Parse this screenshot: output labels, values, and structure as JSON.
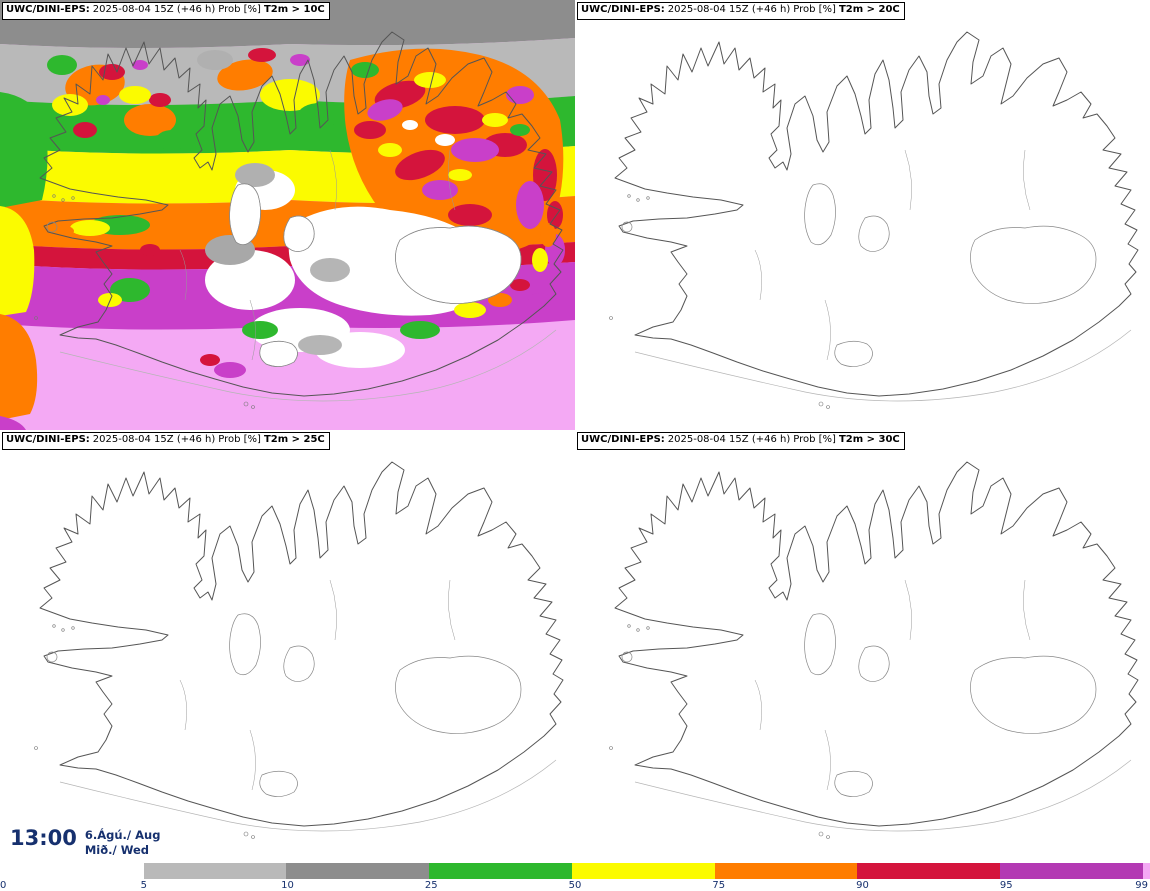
{
  "panels": [
    {
      "model": "UWC/DINI-EPS:",
      "run": "2025-08-04 15Z (+46 h)",
      "prob": "Prob [%]",
      "threshold": "T2m > 10C"
    },
    {
      "model": "UWC/DINI-EPS:",
      "run": "2025-08-04 15Z (+46 h)",
      "prob": "Prob [%]",
      "threshold": "T2m > 20C"
    },
    {
      "model": "UWC/DINI-EPS:",
      "run": "2025-08-04 15Z (+46 h)",
      "prob": "Prob [%]",
      "threshold": "T2m > 25C"
    },
    {
      "model": "UWC/DINI-EPS:",
      "run": "2025-08-04 15Z (+46 h)",
      "prob": "Prob [%]",
      "threshold": "T2m > 30C"
    }
  ],
  "valid_time": {
    "time": "13:00",
    "date": "6.Ágú./ Aug",
    "day": "Mið./ Wed"
  },
  "legend": {
    "ticks": [
      "0",
      "5",
      "10",
      "25",
      "50",
      "75",
      "90",
      "95",
      "99"
    ],
    "segments": [
      {
        "from": 5,
        "to": 10,
        "color": "#b9b9b9"
      },
      {
        "from": 10,
        "to": 25,
        "color": "#8d8d8d"
      },
      {
        "from": 25,
        "to": 50,
        "color": "#2eb82e"
      },
      {
        "from": 50,
        "to": 75,
        "color": "#fbfb00"
      },
      {
        "from": 75,
        "to": 90,
        "color": "#ff7d00"
      },
      {
        "from": 90,
        "to": 95,
        "color": "#d4143c"
      },
      {
        "from": 95,
        "to": 99,
        "color": "#b339b3"
      },
      {
        "from": 99,
        "to": 100,
        "color": "#f4a9f4"
      }
    ]
  },
  "colors": {
    "label_navy": "#16306e",
    "title_black": "#000000"
  }
}
